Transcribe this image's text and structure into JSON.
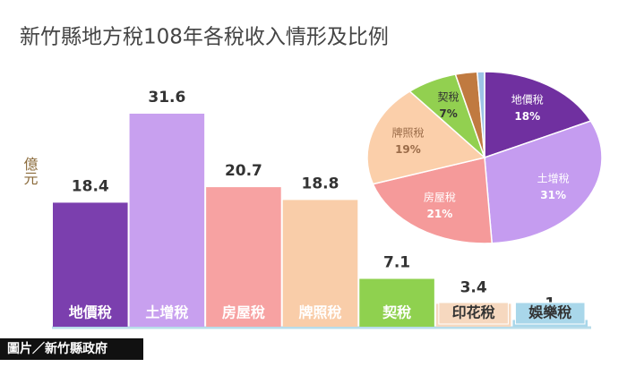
{
  "chart_data": [
    {
      "type": "bar",
      "title": "新竹縣地方稅108年各稅收入情形及比例",
      "y_label": "億元",
      "categories": [
        "地價稅",
        "土增稅",
        "房屋稅",
        "牌照稅",
        "契稅",
        "印花稅",
        "娛樂稅"
      ],
      "values": [
        18.4,
        31.6,
        20.7,
        18.8,
        7.1,
        3.4,
        1
      ],
      "colors": [
        "#7b3fae",
        "#c8a0ef",
        "#f7a2a2",
        "#f9cda9",
        "#8fd14f",
        "#f6d8bf",
        "#a9d7ea"
      ]
    },
    {
      "type": "pie",
      "categories": [
        "地價稅",
        "土增稅",
        "房屋稅",
        "牌照稅",
        "契稅",
        null,
        null
      ],
      "values": [
        18,
        31,
        21,
        19,
        7,
        3,
        1
      ],
      "colors": [
        "#7030a0",
        "#c59cf0",
        "#f59a9a",
        "#fbcfaa",
        "#92d050",
        "#c07a40",
        "#9dc3e6"
      ]
    }
  ],
  "credit": "圖片／新竹縣政府"
}
